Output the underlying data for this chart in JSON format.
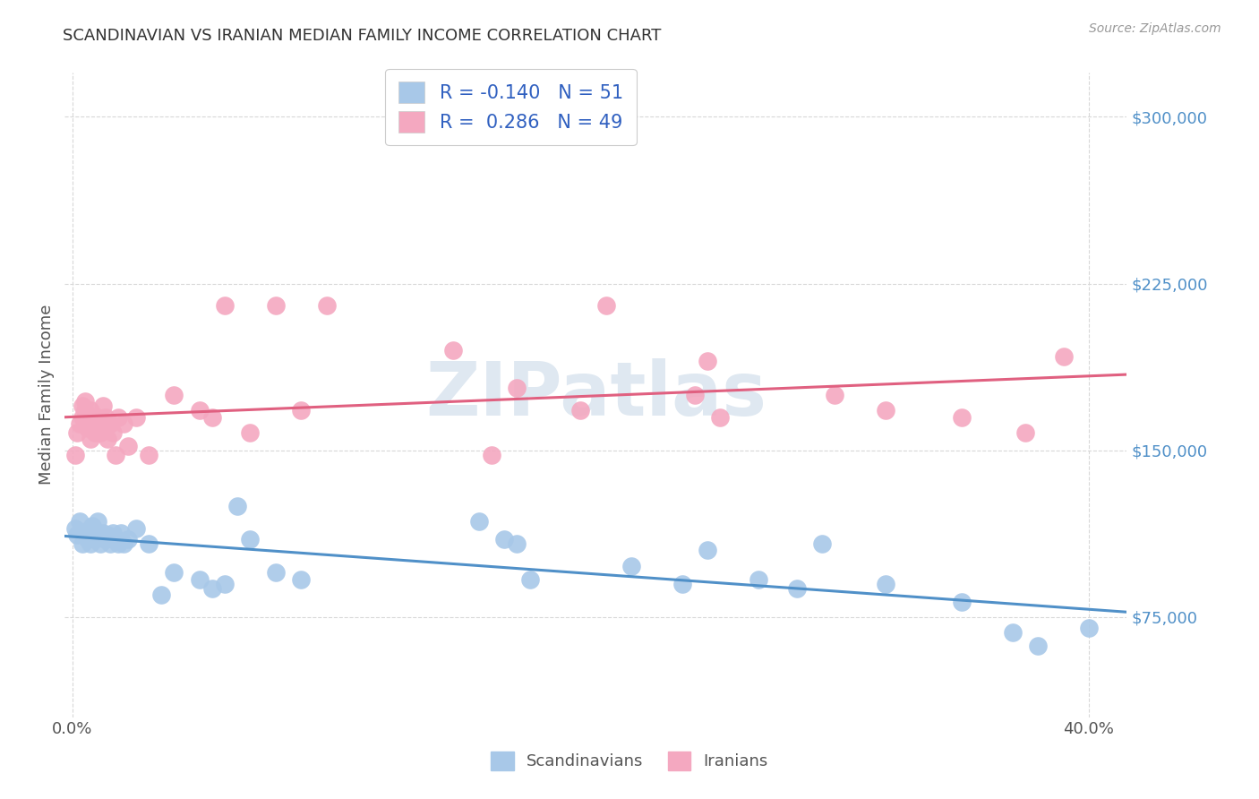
{
  "title": "SCANDINAVIAN VS IRANIAN MEDIAN FAMILY INCOME CORRELATION CHART",
  "source": "Source: ZipAtlas.com",
  "ylabel": "Median Family Income",
  "ytick_labels": [
    "$75,000",
    "$150,000",
    "$225,000",
    "$300,000"
  ],
  "ytick_values": [
    75000,
    150000,
    225000,
    300000
  ],
  "ylim": [
    30000,
    320000
  ],
  "xlim": [
    -0.003,
    0.415
  ],
  "scandinavian_color": "#a8c8e8",
  "iranian_color": "#f4a8c0",
  "scandinavian_line_color": "#5090c8",
  "iranian_line_color": "#e06080",
  "background_color": "#ffffff",
  "grid_color": "#d8d8d8",
  "legend_text_color": "#3060c0",
  "scand_R": -0.14,
  "scand_N": 51,
  "iran_R": 0.286,
  "iran_N": 49,
  "scand_x": [
    0.001,
    0.002,
    0.003,
    0.004,
    0.005,
    0.006,
    0.007,
    0.007,
    0.008,
    0.008,
    0.009,
    0.009,
    0.01,
    0.01,
    0.011,
    0.012,
    0.013,
    0.014,
    0.015,
    0.016,
    0.017,
    0.018,
    0.019,
    0.02,
    0.022,
    0.025,
    0.03,
    0.035,
    0.04,
    0.05,
    0.055,
    0.06,
    0.065,
    0.07,
    0.08,
    0.09,
    0.16,
    0.17,
    0.175,
    0.18,
    0.22,
    0.24,
    0.25,
    0.27,
    0.285,
    0.295,
    0.32,
    0.35,
    0.37,
    0.38,
    0.4
  ],
  "scand_y": [
    115000,
    112000,
    118000,
    108000,
    112000,
    110000,
    115000,
    108000,
    113000,
    116000,
    112000,
    110000,
    118000,
    112000,
    108000,
    113000,
    110000,
    112000,
    108000,
    113000,
    110000,
    108000,
    113000,
    108000,
    110000,
    115000,
    108000,
    85000,
    95000,
    92000,
    88000,
    90000,
    125000,
    110000,
    95000,
    92000,
    118000,
    110000,
    108000,
    92000,
    98000,
    90000,
    105000,
    92000,
    88000,
    108000,
    90000,
    82000,
    68000,
    62000,
    70000
  ],
  "iran_x": [
    0.001,
    0.002,
    0.003,
    0.004,
    0.004,
    0.005,
    0.005,
    0.006,
    0.006,
    0.007,
    0.007,
    0.008,
    0.008,
    0.009,
    0.009,
    0.01,
    0.011,
    0.012,
    0.013,
    0.014,
    0.015,
    0.016,
    0.017,
    0.018,
    0.02,
    0.022,
    0.025,
    0.03,
    0.04,
    0.05,
    0.055,
    0.06,
    0.07,
    0.08,
    0.09,
    0.1,
    0.15,
    0.165,
    0.175,
    0.2,
    0.21,
    0.245,
    0.25,
    0.255,
    0.3,
    0.32,
    0.35,
    0.375,
    0.39
  ],
  "iran_y": [
    148000,
    158000,
    162000,
    165000,
    170000,
    168000,
    172000,
    160000,
    165000,
    168000,
    155000,
    162000,
    165000,
    158000,
    162000,
    165000,
    158000,
    170000,
    165000,
    155000,
    162000,
    158000,
    148000,
    165000,
    162000,
    152000,
    165000,
    148000,
    175000,
    168000,
    165000,
    215000,
    158000,
    215000,
    168000,
    215000,
    195000,
    148000,
    178000,
    168000,
    215000,
    175000,
    190000,
    165000,
    175000,
    168000,
    165000,
    158000,
    192000
  ]
}
